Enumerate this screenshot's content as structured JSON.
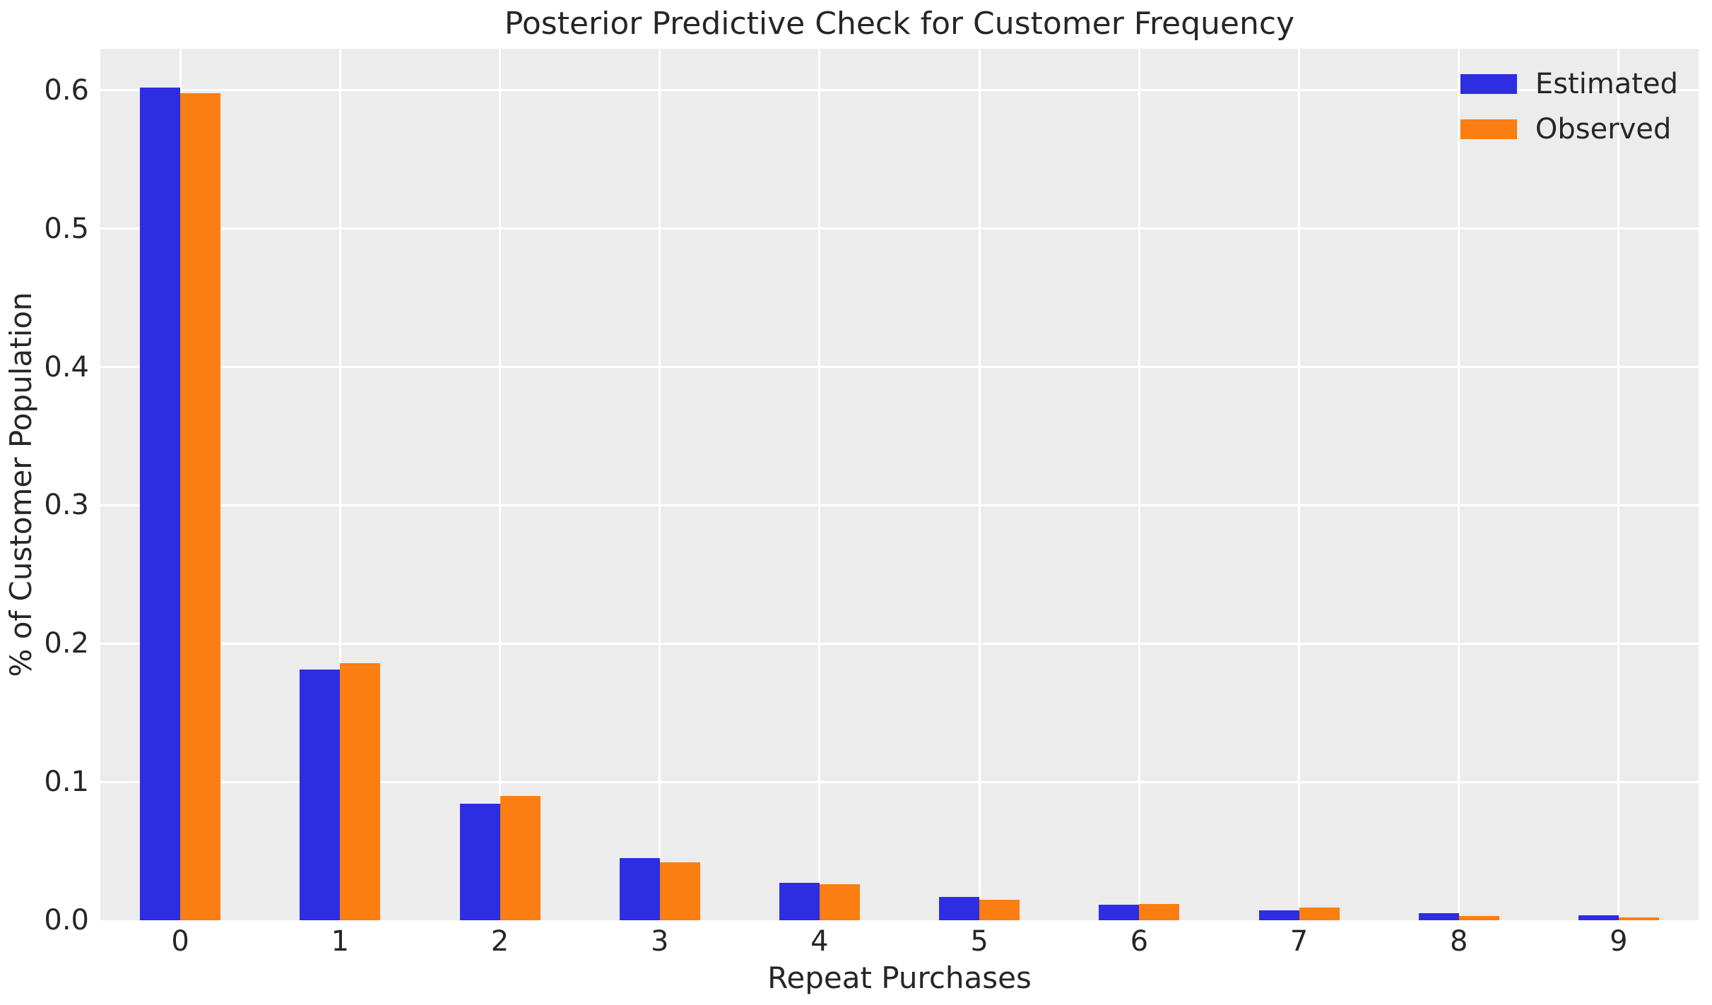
{
  "chart_data": {
    "type": "bar",
    "title": "Posterior Predictive Check for Customer Frequency",
    "xlabel": "Repeat Purchases",
    "ylabel": "% of Customer Population",
    "categories": [
      "0",
      "1",
      "2",
      "3",
      "4",
      "5",
      "6",
      "7",
      "8",
      "9"
    ],
    "series": [
      {
        "name": "Estimated",
        "color": "#2d2de2",
        "values": [
          0.602,
          0.181,
          0.084,
          0.045,
          0.027,
          0.017,
          0.011,
          0.007,
          0.005,
          0.0035
        ]
      },
      {
        "name": "Observed",
        "color": "#fa7e12",
        "values": [
          0.598,
          0.186,
          0.09,
          0.042,
          0.026,
          0.015,
          0.012,
          0.009,
          0.003,
          0.002
        ]
      }
    ],
    "ylim": [
      0,
      0.63
    ],
    "yticks": [
      0.0,
      0.1,
      0.2,
      0.3,
      0.4,
      0.5,
      0.6
    ],
    "grid": true,
    "grid_color": "#ffffff",
    "plot_background": "#ececec",
    "text_color": "#262626",
    "legend_position": "upper right"
  }
}
